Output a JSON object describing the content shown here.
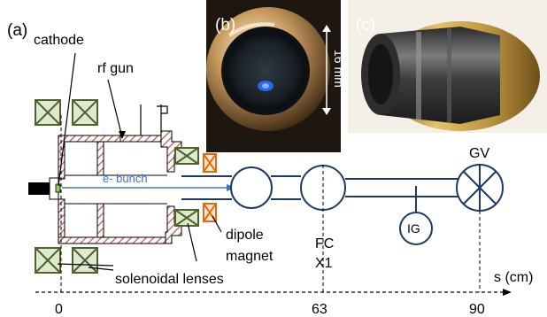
{
  "panels": {
    "a": "(a)",
    "b": "(b)",
    "c": "(c)"
  },
  "labels": {
    "cathode": "cathode",
    "rf_gun": "rf gun",
    "e_bunch": "e- bunch",
    "dipole_line1": "dipole",
    "dipole_line2": "magnet",
    "solenoidal_lenses": "solenoidal lenses",
    "fc": "FC",
    "x1": "X1",
    "ig": "IG",
    "gv": "GV",
    "scale": "16 mm",
    "axis": "s (cm)"
  },
  "axis_ticks": [
    "0",
    "63",
    "90"
  ],
  "colors": {
    "hatch": "#c0504d",
    "coil_fill": "#dde9d0",
    "coil_stroke": "#4f6228",
    "dipole": "#e36c09",
    "beam": "#4472c4",
    "vessel": "#1f3864"
  },
  "photos": {
    "b": "cathode-photo",
    "c": "gun-component-photo"
  }
}
